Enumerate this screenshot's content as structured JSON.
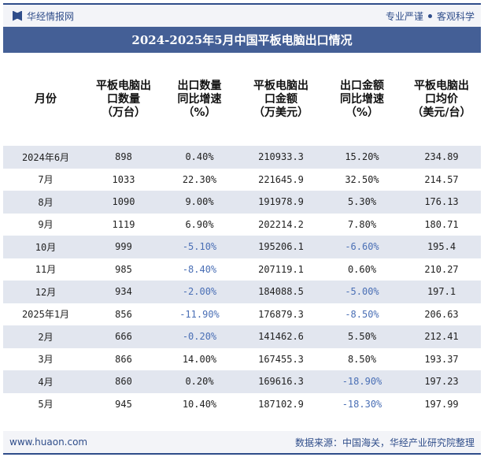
{
  "header": {
    "site_name": "华经情报网",
    "slogan_left": "专业严谨",
    "slogan_right": "客观科学"
  },
  "title": "2024-2025年5月中国平板电脑出口情况",
  "table": {
    "columns": [
      "月份",
      "平板电脑出口数量（万台）",
      "出口数量同比增速（%）",
      "平板电脑出口金额（万美元）",
      "出口金额同比增速（%）",
      "平板电脑出口均价（美元/台）"
    ],
    "columns_display": [
      [
        "月份"
      ],
      [
        "平板电脑出",
        "口数量",
        "（万台）"
      ],
      [
        "出口数量",
        "同比增速",
        "（%）"
      ],
      [
        "平板电脑出",
        "口金额",
        "（万美元）"
      ],
      [
        "出口金额",
        "同比增速",
        "（%）"
      ],
      [
        "平板电脑出",
        "口均价",
        "（美元/台）"
      ]
    ],
    "rows": [
      [
        "2024年6月",
        "898",
        "0.40%",
        "210933.3",
        "15.20%",
        "234.89"
      ],
      [
        "7月",
        "1033",
        "22.30%",
        "221645.9",
        "32.50%",
        "214.57"
      ],
      [
        "8月",
        "1090",
        "9.00%",
        "191978.9",
        "5.30%",
        "176.13"
      ],
      [
        "9月",
        "1119",
        "6.90%",
        "202214.2",
        "7.80%",
        "180.71"
      ],
      [
        "10月",
        "999",
        "-5.10%",
        "195206.1",
        "-6.60%",
        "195.4"
      ],
      [
        "11月",
        "985",
        "-8.40%",
        "207119.1",
        "0.60%",
        "210.27"
      ],
      [
        "12月",
        "934",
        "-2.00%",
        "184088.5",
        "-5.00%",
        "197.1"
      ],
      [
        "2025年1月",
        "856",
        "-11.90%",
        "176879.3",
        "-8.50%",
        "206.63"
      ],
      [
        "2月",
        "666",
        "-0.20%",
        "141462.6",
        "5.50%",
        "212.41"
      ],
      [
        "3月",
        "866",
        "14.00%",
        "167455.3",
        "8.50%",
        "193.37"
      ],
      [
        "4月",
        "860",
        "0.20%",
        "169616.3",
        "-18.90%",
        "197.23"
      ],
      [
        "5月",
        "945",
        "10.40%",
        "187102.9",
        "-18.30%",
        "197.99"
      ]
    ]
  },
  "footer": {
    "url": "www.huaon.com",
    "source": "数据来源：中国海关，华经产业研究院整理"
  },
  "colors": {
    "brand": "#2f4d8a",
    "title_bar": "#445f96",
    "negative": "#4a6fb5",
    "stripe": "#e2e6ef"
  }
}
